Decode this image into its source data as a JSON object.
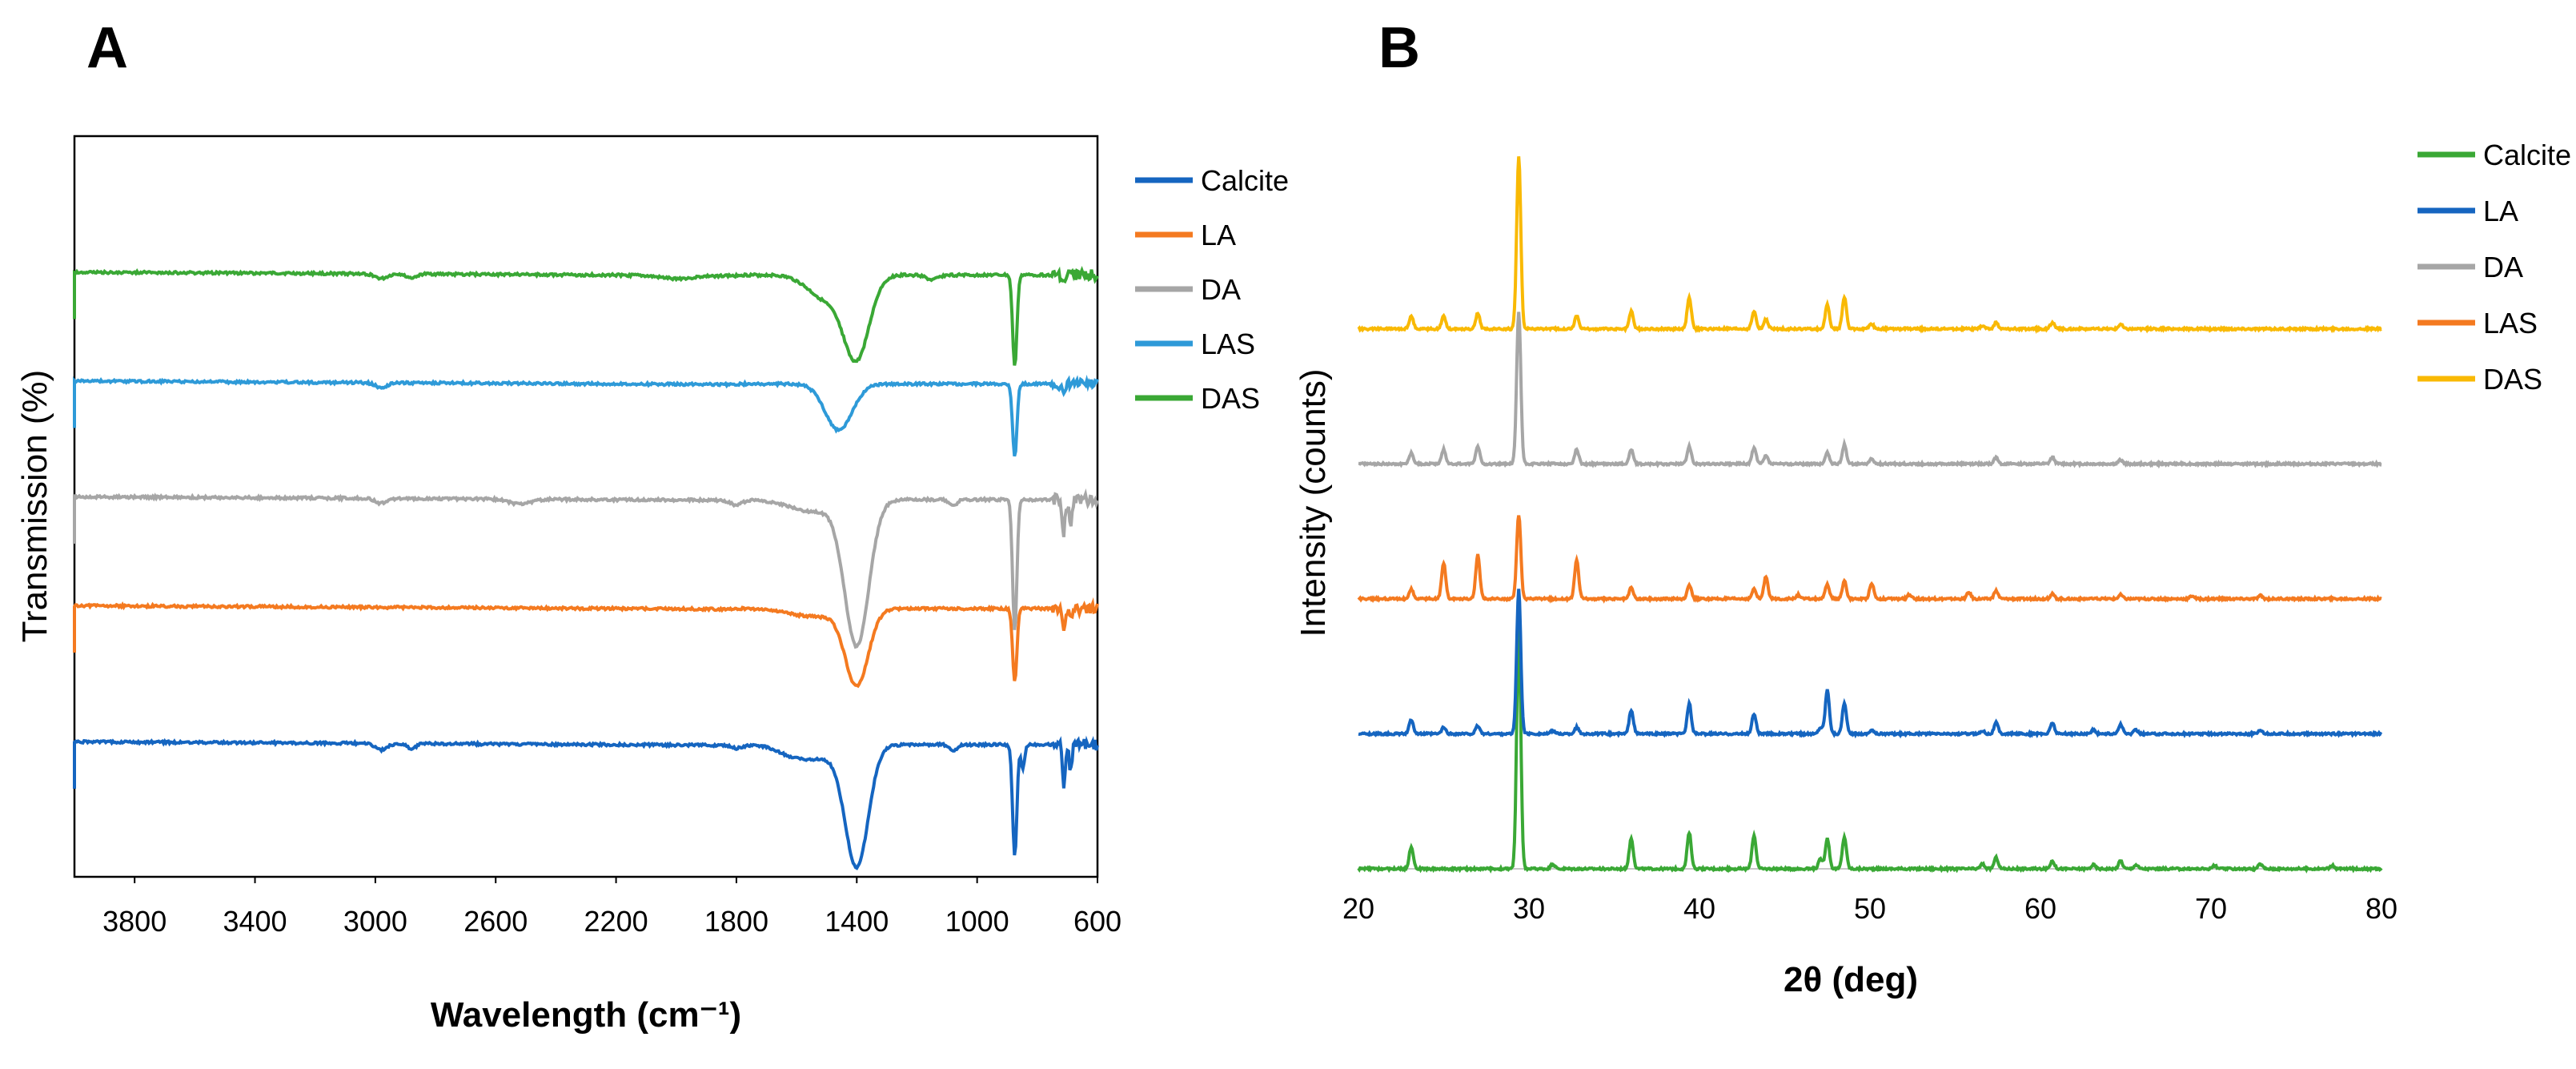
{
  "chart_data": [
    {
      "panel": "A",
      "type": "line",
      "title": "",
      "xlabel": "Wavelength (cm⁻¹)",
      "ylabel": "Transmission (%)",
      "xlim": [
        4000,
        600
      ],
      "x_reversed": true,
      "x_ticks": [
        3800,
        3400,
        3000,
        2600,
        2200,
        1800,
        1400,
        1000,
        600
      ],
      "y_ticks": [],
      "grid": false,
      "legend_position": "right",
      "legend": [
        {
          "name": "Calcite",
          "color": "#1565c0"
        },
        {
          "name": "LA",
          "color": "#f47a20"
        },
        {
          "name": "DA",
          "color": "#a6a6a6"
        },
        {
          "name": "LAS",
          "color": "#2e9ad8"
        },
        {
          "name": "DAS",
          "color": "#3aa835"
        }
      ],
      "series": [
        {
          "name": "Calcite",
          "color": "#1565c0",
          "baseline": 1.0,
          "bands": [
            [
              2980,
              8,
              20
            ],
            [
              2880,
              6,
              15
            ],
            [
              1795,
              4,
              20
            ],
            [
              1630,
              4,
              40
            ],
            [
              1540,
              18,
              80
            ],
            [
              1400,
              150,
              38
            ],
            [
              1080,
              8,
              12
            ],
            [
              875,
              140,
              7
            ],
            [
              848,
              30,
              6
            ],
            [
              712,
              50,
              5
            ],
            [
              690,
              30,
              5
            ]
          ]
        },
        {
          "name": "LA",
          "color": "#f47a20",
          "baseline": 3.0,
          "bands": [
            [
              1400,
              95,
              38
            ],
            [
              1540,
              10,
              80
            ],
            [
              875,
              92,
              7
            ],
            [
              712,
              22,
              5
            ],
            [
              690,
              15,
              5
            ]
          ]
        },
        {
          "name": "DA",
          "color": "#a6a6a6",
          "baseline": 4.6,
          "bands": [
            [
              2980,
              6,
              20
            ],
            [
              2520,
              6,
              35
            ],
            [
              1800,
              6,
              20
            ],
            [
              1540,
              15,
              80
            ],
            [
              1400,
              180,
              40
            ],
            [
              1080,
              8,
              12
            ],
            [
              875,
              165,
              7
            ],
            [
              712,
              40,
              5
            ],
            [
              690,
              30,
              5
            ]
          ]
        },
        {
          "name": "LAS",
          "color": "#2e9ad8",
          "baseline": 6.3,
          "bands": [
            [
              2980,
              6,
              20
            ],
            [
              1460,
              58,
              45
            ],
            [
              875,
              92,
              7
            ],
            [
              712,
              18,
              5
            ]
          ]
        },
        {
          "name": "DAS",
          "color": "#3aa835",
          "baseline": 7.9,
          "bands": [
            [
              2980,
              6,
              20
            ],
            [
              2880,
              5,
              15
            ],
            [
              2000,
              4,
              60
            ],
            [
              1400,
              100,
              42
            ],
            [
              1500,
              30,
              60
            ],
            [
              1150,
              6,
              20
            ],
            [
              875,
              115,
              7
            ],
            [
              712,
              12,
              5
            ]
          ]
        }
      ]
    },
    {
      "panel": "B",
      "type": "line",
      "title": "",
      "xlabel": "2θ (deg)",
      "ylabel": "Intensity (counts)",
      "xlim": [
        20,
        80
      ],
      "x_ticks": [
        20,
        30,
        40,
        50,
        60,
        70,
        80
      ],
      "y_ticks": [],
      "grid": false,
      "legend_position": "right",
      "legend": [
        {
          "name": "Calcite",
          "color": "#3aa835"
        },
        {
          "name": "LA",
          "color": "#1565c0"
        },
        {
          "name": "DA",
          "color": "#a6a6a6"
        },
        {
          "name": "LAS",
          "color": "#f47a20"
        },
        {
          "name": "DAS",
          "color": "#f9b904"
        }
      ],
      "series": [
        {
          "name": "Calcite",
          "color": "#3aa835",
          "baseline": 0,
          "peaks": [
            [
              23.1,
              28
            ],
            [
              29.4,
              300
            ],
            [
              31.4,
              6
            ],
            [
              36.0,
              38
            ],
            [
              39.4,
              45
            ],
            [
              43.2,
              42
            ],
            [
              47.1,
              12
            ],
            [
              47.5,
              38
            ],
            [
              48.5,
              40
            ],
            [
              56.6,
              6
            ],
            [
              57.4,
              14
            ],
            [
              60.7,
              10
            ],
            [
              63.1,
              5
            ],
            [
              64.7,
              10
            ],
            [
              65.6,
              5
            ],
            [
              70.2,
              4
            ],
            [
              72.9,
              6
            ],
            [
              77.1,
              4
            ]
          ]
        },
        {
          "name": "LA",
          "color": "#1565c0",
          "baseline": 1.72,
          "peaks": [
            [
              23.1,
              18
            ],
            [
              25.0,
              8
            ],
            [
              27.0,
              10
            ],
            [
              29.4,
              180
            ],
            [
              31.4,
              4
            ],
            [
              32.8,
              8
            ],
            [
              36.0,
              30
            ],
            [
              39.4,
              38
            ],
            [
              43.2,
              25
            ],
            [
              47.1,
              8
            ],
            [
              47.5,
              55
            ],
            [
              48.5,
              38
            ],
            [
              50.1,
              5
            ],
            [
              56.6,
              4
            ],
            [
              57.4,
              14
            ],
            [
              60.7,
              14
            ],
            [
              63.1,
              5
            ],
            [
              64.7,
              12
            ],
            [
              65.6,
              5
            ],
            [
              72.9,
              5
            ]
          ]
        },
        {
          "name": "LAS",
          "color": "#f47a20",
          "baseline": 3.44,
          "peaks": [
            [
              23.1,
              12
            ],
            [
              25.0,
              45
            ],
            [
              27.0,
              55
            ],
            [
              29.4,
              105
            ],
            [
              32.8,
              48
            ],
            [
              36.0,
              14
            ],
            [
              39.4,
              18
            ],
            [
              43.2,
              12
            ],
            [
              43.9,
              28
            ],
            [
              45.8,
              5
            ],
            [
              47.5,
              18
            ],
            [
              48.5,
              22
            ],
            [
              50.1,
              20
            ],
            [
              52.3,
              5
            ],
            [
              55.8,
              8
            ],
            [
              57.4,
              10
            ],
            [
              60.7,
              6
            ],
            [
              64.7,
              5
            ],
            [
              68.9,
              4
            ],
            [
              72.9,
              4
            ]
          ]
        },
        {
          "name": "DA",
          "color": "#a6a6a6",
          "baseline": 5.16,
          "peaks": [
            [
              23.1,
              14
            ],
            [
              25.0,
              18
            ],
            [
              27.0,
              22
            ],
            [
              29.4,
              190
            ],
            [
              32.8,
              18
            ],
            [
              36.0,
              18
            ],
            [
              39.4,
              22
            ],
            [
              43.2,
              20
            ],
            [
              43.9,
              10
            ],
            [
              47.5,
              14
            ],
            [
              48.5,
              24
            ],
            [
              50.1,
              6
            ],
            [
              57.4,
              8
            ],
            [
              60.7,
              8
            ],
            [
              64.7,
              5
            ]
          ]
        },
        {
          "name": "DAS",
          "color": "#f9b904",
          "baseline": 6.88,
          "peaks": [
            [
              23.1,
              16
            ],
            [
              25.0,
              16
            ],
            [
              27.0,
              20
            ],
            [
              29.4,
              215
            ],
            [
              32.8,
              16
            ],
            [
              36.0,
              22
            ],
            [
              39.4,
              40
            ],
            [
              43.2,
              22
            ],
            [
              43.9,
              12
            ],
            [
              47.5,
              30
            ],
            [
              48.5,
              40
            ],
            [
              50.1,
              6
            ],
            [
              56.6,
              4
            ],
            [
              57.4,
              8
            ],
            [
              60.7,
              8
            ],
            [
              64.7,
              6
            ]
          ]
        }
      ]
    }
  ],
  "figure": {
    "panel_a_label": "A",
    "panel_b_label": "B"
  }
}
